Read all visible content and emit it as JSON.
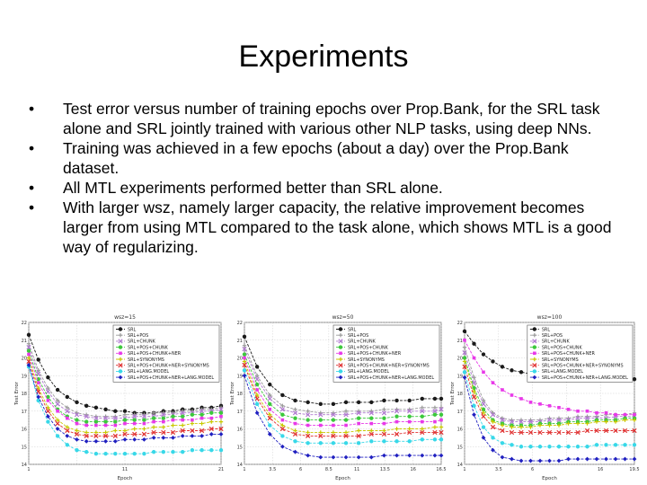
{
  "slide": {
    "title": "Experiments",
    "bullet_glyph": "•",
    "bullets": [
      "Test error versus number of training epochs over Prop.Bank, for the SRL task alone and SRL jointly trained with various other NLP tasks, using deep NNs.",
      "Training was achieved in a few epochs (about a day) over the Prop.Bank dataset.",
      "All MTL experiments performed better than SRL alone.",
      "With larger wsz, namely larger capacity, the relative improvement becomes larger from using MTL compared to the task alone, which shows MTL is a good way of regularizing."
    ]
  },
  "chart_data": [
    {
      "type": "line",
      "title": "wsz=15",
      "xlabel": "Epoch",
      "ylabel": "Test Error",
      "xlim": [
        1,
        21
      ],
      "ylim": [
        14,
        22
      ],
      "xticks": [
        "1",
        "",
        "11",
        "",
        "21"
      ],
      "yticks": [
        "22",
        "21",
        "20",
        "19",
        "18",
        "17",
        "16",
        "15",
        "14"
      ],
      "legend_placement": "top-right",
      "grid": true,
      "x": [
        1,
        2,
        3,
        4,
        5,
        6,
        7,
        8,
        9,
        10,
        11,
        12,
        13,
        14,
        15,
        16,
        17,
        18,
        19,
        20,
        21
      ],
      "series": [
        {
          "name": "SRL",
          "color": "#1a1a1a",
          "values": [
            21.3,
            19.9,
            18.9,
            18.2,
            17.8,
            17.5,
            17.3,
            17.2,
            17.1,
            17.0,
            17.0,
            16.9,
            16.9,
            16.9,
            17.0,
            17.0,
            17.1,
            17.1,
            17.2,
            17.2,
            17.3
          ]
        },
        {
          "name": "SRL+POS",
          "color": "#9a9a9a",
          "values": [
            20.8,
            19.3,
            18.3,
            17.6,
            17.2,
            16.9,
            16.8,
            16.7,
            16.7,
            16.7,
            16.8,
            16.8,
            16.8,
            16.9,
            16.9,
            16.9,
            17.0,
            17.0,
            17.1,
            17.1,
            17.2
          ]
        },
        {
          "name": "SRL+CHUNK",
          "color": "#b07ad0",
          "values": [
            20.6,
            19.1,
            18.1,
            17.4,
            17.0,
            16.8,
            16.7,
            16.6,
            16.6,
            16.6,
            16.6,
            16.7,
            16.7,
            16.7,
            16.8,
            16.8,
            16.9,
            16.9,
            17.0,
            17.0,
            17.1
          ]
        },
        {
          "name": "SRL+POS+CHUNK",
          "color": "#3cc83c",
          "values": [
            20.4,
            18.8,
            17.8,
            17.1,
            16.7,
            16.5,
            16.4,
            16.4,
            16.4,
            16.4,
            16.5,
            16.5,
            16.5,
            16.6,
            16.6,
            16.7,
            16.7,
            16.8,
            16.8,
            16.9,
            16.9
          ]
        },
        {
          "name": "SRL+POS+CHUNK+NER",
          "color": "#e838e8",
          "values": [
            20.2,
            18.6,
            17.6,
            17.0,
            16.6,
            16.3,
            16.2,
            16.2,
            16.2,
            16.2,
            16.3,
            16.3,
            16.3,
            16.4,
            16.4,
            16.5,
            16.5,
            16.5,
            16.6,
            16.6,
            16.7
          ]
        },
        {
          "name": "SRL+SYNONYMS",
          "color": "#c8c800",
          "values": [
            20.0,
            18.3,
            17.2,
            16.5,
            16.1,
            15.9,
            15.8,
            15.8,
            15.8,
            15.9,
            15.9,
            16.0,
            16.0,
            16.1,
            16.1,
            16.2,
            16.2,
            16.3,
            16.3,
            16.4,
            16.4
          ]
        },
        {
          "name": "SRL+POS+CHUNK+NER+SYNONYMS",
          "color": "#e03030",
          "values": [
            19.8,
            18.1,
            17.0,
            16.3,
            15.9,
            15.7,
            15.6,
            15.6,
            15.6,
            15.6,
            15.7,
            15.7,
            15.7,
            15.8,
            15.8,
            15.8,
            15.9,
            15.9,
            15.9,
            16.0,
            16.0
          ]
        },
        {
          "name": "SRL+LANG.MODEL",
          "color": "#38d8e8",
          "values": [
            19.5,
            17.6,
            16.4,
            15.6,
            15.1,
            14.8,
            14.7,
            14.6,
            14.6,
            14.6,
            14.6,
            14.6,
            14.6,
            14.7,
            14.7,
            14.7,
            14.7,
            14.8,
            14.8,
            14.8,
            14.8
          ]
        },
        {
          "name": "SRL+POS+CHUNK+NER+LANG.MODEL",
          "color": "#2020c0",
          "values": [
            19.6,
            17.8,
            16.7,
            16.0,
            15.6,
            15.4,
            15.3,
            15.3,
            15.3,
            15.3,
            15.4,
            15.4,
            15.4,
            15.5,
            15.5,
            15.5,
            15.6,
            15.6,
            15.6,
            15.7,
            15.7
          ]
        }
      ]
    },
    {
      "type": "line",
      "title": "wsz=50",
      "xlabel": "Epoch",
      "ylabel": "Test Error",
      "xlim": [
        1,
        16.5
      ],
      "ylim": [
        14,
        22
      ],
      "xticks": [
        "1",
        "3.5",
        "6",
        "8.5",
        "11",
        "13.5",
        "16",
        "16.5"
      ],
      "yticks": [
        "22",
        "21",
        "20",
        "19",
        "18",
        "17",
        "16",
        "15",
        "14"
      ],
      "legend_placement": "top-right",
      "grid": true,
      "x": [
        1,
        2,
        3,
        4,
        5,
        6,
        7,
        8,
        9,
        10,
        11,
        12,
        13,
        14,
        15,
        16,
        16.5
      ],
      "series": [
        {
          "name": "SRL",
          "color": "#1a1a1a",
          "values": [
            21.2,
            19.5,
            18.5,
            17.9,
            17.6,
            17.5,
            17.4,
            17.4,
            17.5,
            17.5,
            17.5,
            17.6,
            17.6,
            17.6,
            17.7,
            17.7,
            17.7
          ]
        },
        {
          "name": "SRL+POS",
          "color": "#9a9a9a",
          "values": [
            20.7,
            19.0,
            17.9,
            17.3,
            17.1,
            17.0,
            16.9,
            16.9,
            17.0,
            17.0,
            17.0,
            17.1,
            17.1,
            17.1,
            17.2,
            17.2,
            17.2
          ]
        },
        {
          "name": "SRL+CHUNK",
          "color": "#b07ad0",
          "values": [
            20.5,
            18.8,
            17.7,
            17.1,
            16.9,
            16.8,
            16.8,
            16.8,
            16.8,
            16.9,
            16.9,
            16.9,
            17.0,
            17.0,
            17.0,
            17.0,
            17.1
          ]
        },
        {
          "name": "SRL+POS+CHUNK",
          "color": "#3cc83c",
          "values": [
            20.2,
            18.5,
            17.4,
            16.8,
            16.6,
            16.5,
            16.5,
            16.5,
            16.5,
            16.6,
            16.6,
            16.6,
            16.7,
            16.7,
            16.7,
            16.8,
            16.8
          ]
        },
        {
          "name": "SRL+POS+CHUNK+NER",
          "color": "#e838e8",
          "values": [
            20.0,
            18.2,
            17.1,
            16.5,
            16.3,
            16.2,
            16.2,
            16.2,
            16.2,
            16.3,
            16.3,
            16.3,
            16.4,
            16.4,
            16.4,
            16.4,
            16.5
          ]
        },
        {
          "name": "SRL+SYNONYMS",
          "color": "#c8c800",
          "values": [
            19.8,
            17.9,
            16.8,
            16.2,
            15.9,
            15.8,
            15.8,
            15.8,
            15.8,
            15.9,
            15.9,
            15.9,
            16.0,
            16.0,
            16.0,
            16.1,
            16.1
          ]
        },
        {
          "name": "SRL+POS+CHUNK+NER+SYNONYMS",
          "color": "#e03030",
          "values": [
            19.6,
            17.7,
            16.6,
            16.0,
            15.7,
            15.6,
            15.6,
            15.6,
            15.6,
            15.6,
            15.7,
            15.7,
            15.7,
            15.8,
            15.8,
            15.8,
            15.8
          ]
        },
        {
          "name": "SRL+LANG.MODEL",
          "color": "#38d8e8",
          "values": [
            19.3,
            17.4,
            16.2,
            15.6,
            15.3,
            15.2,
            15.2,
            15.2,
            15.2,
            15.2,
            15.3,
            15.3,
            15.3,
            15.3,
            15.4,
            15.4,
            15.4
          ]
        },
        {
          "name": "SRL+POS+CHUNK+NER+LANG.MODEL",
          "color": "#2020c0",
          "values": [
            19.0,
            16.9,
            15.7,
            15.0,
            14.7,
            14.5,
            14.4,
            14.4,
            14.4,
            14.4,
            14.4,
            14.5,
            14.5,
            14.5,
            14.5,
            14.5,
            14.5
          ]
        }
      ]
    },
    {
      "type": "line",
      "title": "wsz=100",
      "xlabel": "Epoch",
      "ylabel": "Test Error",
      "xlim": [
        1,
        19
      ],
      "ylim": [
        14,
        22
      ],
      "xticks": [
        "1",
        "3.5",
        "6",
        "",
        "16",
        "19.5"
      ],
      "yticks": [
        "22",
        "21",
        "20",
        "19",
        "18",
        "17",
        "16",
        "15",
        "14"
      ],
      "legend_placement": "top-right",
      "grid": true,
      "x": [
        1,
        2,
        3,
        4,
        5,
        6,
        7,
        8,
        9,
        10,
        11,
        12,
        13,
        14,
        15,
        16,
        17,
        18,
        19
      ],
      "series": [
        {
          "name": "SRL",
          "color": "#1a1a1a",
          "values": [
            21.5,
            20.8,
            20.2,
            19.8,
            19.5,
            19.3,
            19.2,
            19.1,
            19.0,
            19.0,
            18.9,
            18.9,
            18.9,
            18.8,
            18.8,
            18.8,
            18.8,
            18.8,
            18.8
          ]
        },
        {
          "name": "SRL+POS",
          "color": "#9a9a9a",
          "values": [
            20.6,
            18.9,
            17.6,
            16.9,
            16.6,
            16.5,
            16.5,
            16.5,
            16.5,
            16.6,
            16.6,
            16.6,
            16.7,
            16.7,
            16.7,
            16.8,
            16.8,
            16.8,
            16.9
          ]
        },
        {
          "name": "SRL+CHUNK",
          "color": "#b07ad0",
          "values": [
            20.3,
            18.6,
            17.4,
            16.8,
            16.5,
            16.4,
            16.4,
            16.4,
            16.4,
            16.5,
            16.5,
            16.5,
            16.6,
            16.6,
            16.6,
            16.6,
            16.7,
            16.7,
            16.7
          ]
        },
        {
          "name": "SRL+POS+CHUNK",
          "color": "#3cc83c",
          "values": [
            20.0,
            18.3,
            17.1,
            16.5,
            16.3,
            16.2,
            16.2,
            16.2,
            16.3,
            16.3,
            16.3,
            16.4,
            16.4,
            16.4,
            16.5,
            16.5,
            16.5,
            16.6,
            16.6
          ]
        },
        {
          "name": "SRL+POS+CHUNK+NER",
          "color": "#e838e8",
          "values": [
            21.0,
            20.0,
            19.2,
            18.6,
            18.2,
            17.9,
            17.7,
            17.5,
            17.4,
            17.3,
            17.2,
            17.1,
            17.0,
            17.0,
            16.9,
            16.9,
            16.8,
            16.8,
            16.8
          ]
        },
        {
          "name": "SRL+SYNONYMS",
          "color": "#c8c800",
          "values": [
            19.8,
            18.1,
            16.9,
            16.4,
            16.2,
            16.1,
            16.1,
            16.1,
            16.2,
            16.2,
            16.2,
            16.3,
            16.3,
            16.3,
            16.4,
            16.4,
            16.4,
            16.5,
            16.5
          ]
        },
        {
          "name": "SRL+POS+CHUNK+NER+SYNONYMS",
          "color": "#e03030",
          "values": [
            19.5,
            17.8,
            16.7,
            16.1,
            15.9,
            15.8,
            15.8,
            15.8,
            15.8,
            15.8,
            15.8,
            15.8,
            15.8,
            15.9,
            15.9,
            15.9,
            15.9,
            15.9,
            15.9
          ]
        },
        {
          "name": "SRL+LANG.MODEL",
          "color": "#38d8e8",
          "values": [
            19.2,
            17.3,
            16.1,
            15.5,
            15.2,
            15.1,
            15.0,
            15.0,
            15.0,
            15.0,
            15.0,
            15.0,
            15.0,
            15.0,
            15.1,
            15.1,
            15.1,
            15.1,
            15.1
          ]
        },
        {
          "name": "SRL+POS+CHUNK+NER+LANG.MODEL",
          "color": "#2020c0",
          "values": [
            18.9,
            16.8,
            15.5,
            14.8,
            14.4,
            14.3,
            14.2,
            14.2,
            14.2,
            14.2,
            14.2,
            14.3,
            14.3,
            14.3,
            14.3,
            14.3,
            14.3,
            14.3,
            14.3
          ]
        }
      ]
    }
  ]
}
